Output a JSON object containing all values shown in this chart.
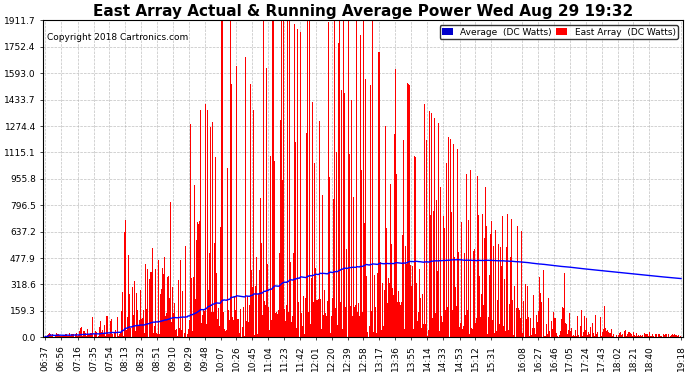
{
  "title": "East Array Actual & Running Average Power Wed Aug 29 19:32",
  "copyright": "Copyright 2018 Cartronics.com",
  "yticks": [
    0.0,
    159.3,
    318.6,
    477.9,
    637.2,
    796.5,
    955.8,
    1115.1,
    1274.4,
    1433.7,
    1593.0,
    1752.4,
    1911.7
  ],
  "ymax": 1911.7,
  "ymin": 0.0,
  "bar_color": "#ff0000",
  "avg_color": "#0000ff",
  "background_color": "#ffffff",
  "grid_color": "#b0b0b0",
  "legend_avg_bg": "#0000cc",
  "legend_east_bg": "#ff0000",
  "title_fontsize": 11,
  "tick_fontsize": 6.5,
  "start_time": "06:37",
  "end_time": "19:18",
  "xtick_labels": [
    "06:37",
    "06:56",
    "07:16",
    "07:35",
    "07:54",
    "08:13",
    "08:32",
    "08:51",
    "09:10",
    "09:29",
    "09:48",
    "10:07",
    "10:26",
    "10:45",
    "11:04",
    "11:23",
    "11:42",
    "12:01",
    "12:20",
    "12:39",
    "12:58",
    "13:17",
    "13:36",
    "13:55",
    "14:14",
    "14:33",
    "14:53",
    "15:12",
    "15:31",
    "16:08",
    "16:27",
    "16:46",
    "17:05",
    "17:24",
    "17:43",
    "18:02",
    "18:21",
    "18:40",
    "19:18"
  ]
}
